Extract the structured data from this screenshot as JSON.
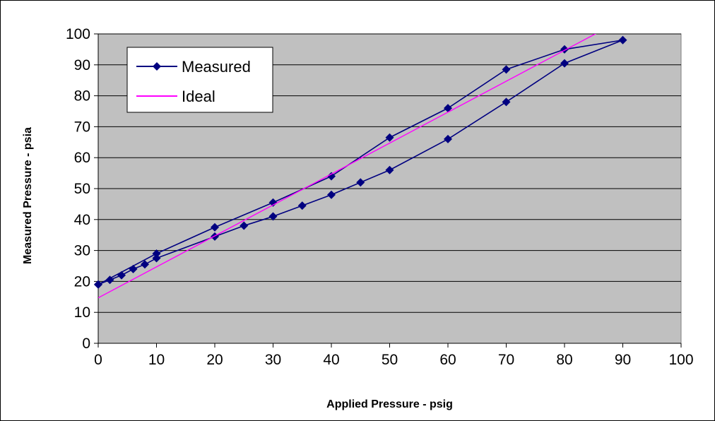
{
  "chart_data": {
    "type": "line",
    "xlabel": "Applied Pressure - psig",
    "ylabel": "Measured Pressure - psia",
    "xlim": [
      0,
      100
    ],
    "ylim": [
      0,
      100
    ],
    "x_ticks": [
      0,
      10,
      20,
      30,
      40,
      50,
      60,
      70,
      80,
      90,
      100
    ],
    "y_ticks": [
      0,
      10,
      20,
      30,
      40,
      50,
      60,
      70,
      80,
      90,
      100
    ],
    "grid": "horizontal",
    "plot_background": "#c0c0c0",
    "legend_position": "top-left",
    "series": [
      {
        "name": "Measured",
        "color": "#000080",
        "marker": "diamond",
        "points": [
          [
            0,
            19
          ],
          [
            2,
            20.5
          ],
          [
            4,
            22
          ],
          [
            6,
            24
          ],
          [
            8,
            25.5
          ],
          [
            10,
            27.5
          ],
          [
            20,
            34.5
          ],
          [
            25,
            38
          ],
          [
            30,
            41
          ],
          [
            35,
            44.5
          ],
          [
            40,
            48
          ],
          [
            45,
            52
          ],
          [
            50,
            56
          ],
          [
            60,
            66
          ],
          [
            70,
            78
          ],
          [
            80,
            90.5
          ],
          [
            90,
            98
          ],
          [
            80,
            95
          ],
          [
            70,
            88.5
          ],
          [
            60,
            76
          ],
          [
            50,
            66.5
          ],
          [
            40,
            54
          ],
          [
            30,
            45.5
          ],
          [
            20,
            37.5
          ],
          [
            10,
            29
          ],
          [
            0,
            19
          ]
        ]
      },
      {
        "name": "Ideal",
        "color": "#ff00ff",
        "marker": "none",
        "points": [
          [
            0,
            14.7
          ],
          [
            86.7,
            101.4
          ]
        ]
      }
    ]
  }
}
